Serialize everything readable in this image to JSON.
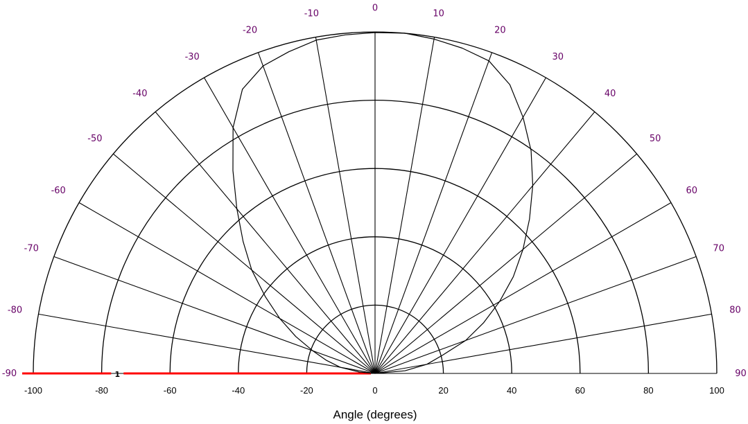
{
  "chart_data": {
    "type": "polar",
    "half_plane": "upper",
    "xlabel": "Angle (degrees)",
    "radial_ticks": [
      "-100",
      "-80",
      "-60",
      "-40",
      "-20",
      "0",
      "20",
      "40",
      "60",
      "80",
      "100"
    ],
    "radial_tick_values": [
      -100,
      -80,
      -60,
      -40,
      -20,
      0,
      20,
      40,
      60,
      80,
      100
    ],
    "angle_ticks": [
      "-90",
      "-80",
      "-70",
      "-60",
      "-50",
      "-40",
      "-30",
      "-20",
      "-10",
      "0",
      "10",
      "20",
      "30",
      "40",
      "50",
      "60",
      "70",
      "80",
      "90"
    ],
    "angle_tick_values": [
      -90,
      -80,
      -70,
      -60,
      -50,
      -40,
      -30,
      -20,
      -10,
      0,
      10,
      20,
      30,
      40,
      50,
      60,
      70,
      80,
      90
    ],
    "rmax": 100,
    "ring_step": 20,
    "spoke_step": 10,
    "grid": true,
    "series": [
      {
        "angle": [
          -90,
          -85,
          -80,
          -75,
          -70,
          -65,
          -60,
          -55,
          -50,
          -45,
          -40,
          -35,
          -30,
          -25,
          -20,
          -15,
          -10,
          -5,
          0,
          5,
          10,
          15,
          20,
          25,
          30,
          35,
          40,
          45,
          50,
          55,
          60,
          65,
          70,
          75,
          80,
          85,
          90
        ],
        "r": [
          0,
          4.6,
          10.3,
          14.7,
          19.4,
          25.6,
          32.2,
          39.2,
          47.1,
          54.6,
          62.9,
          72.5,
          83.1,
          91.8,
          95.8,
          97.5,
          99.1,
          99.5,
          99.8,
          100,
          99.4,
          98.6,
          97.4,
          93.3,
          86.6,
          79.6,
          71.8,
          63.9,
          56.5,
          49.4,
          42.1,
          35.0,
          28.2,
          20.3,
          15.4,
          8.8,
          0
        ],
        "color": "#000000"
      }
    ],
    "marker": {
      "label": "1",
      "color": "#ff0000"
    }
  }
}
